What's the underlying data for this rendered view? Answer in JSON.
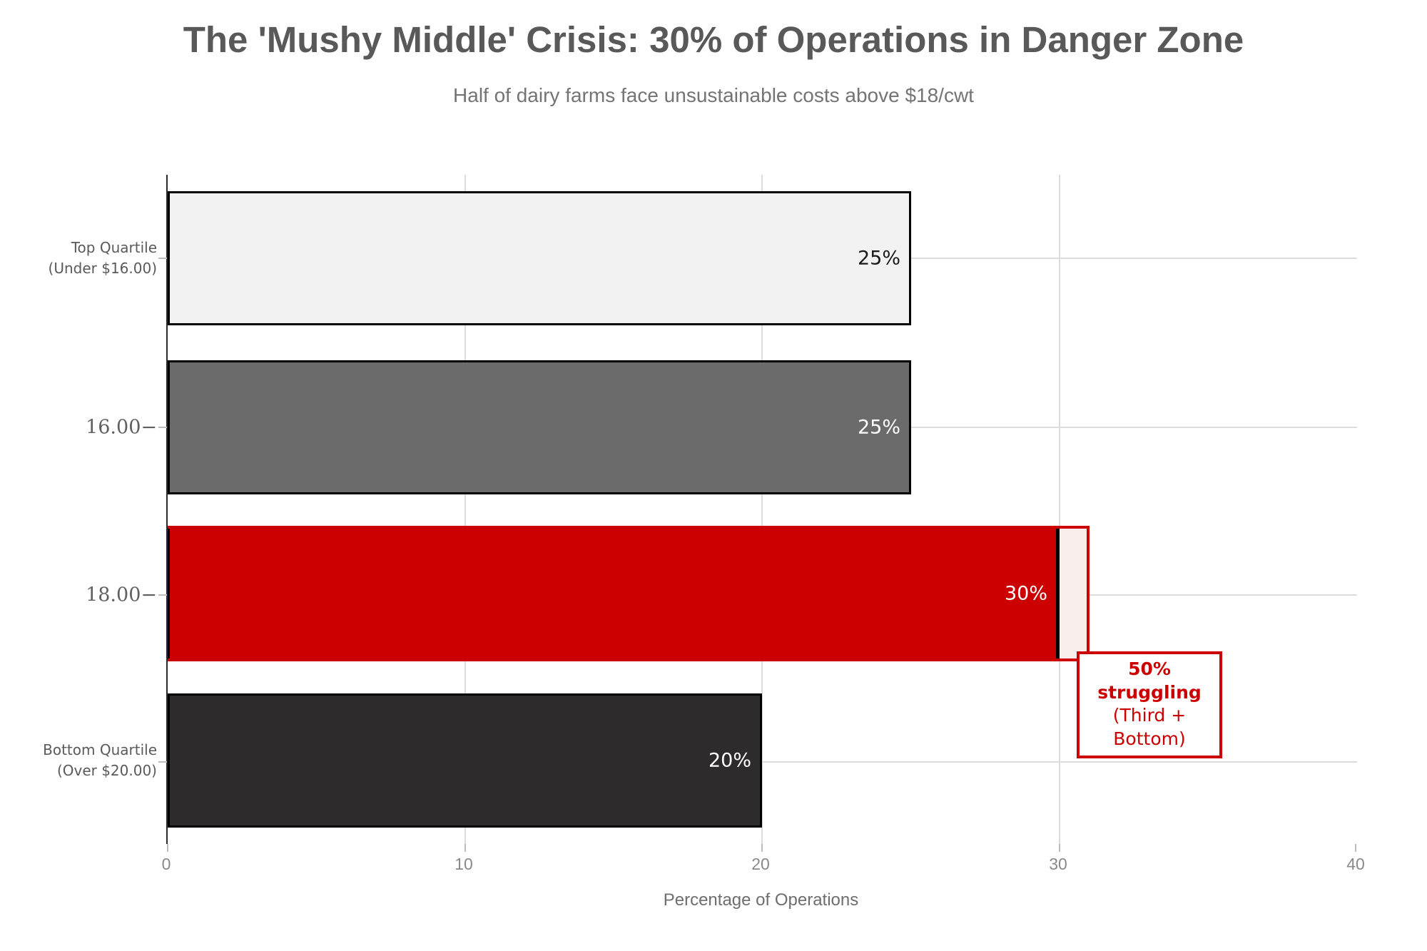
{
  "title": "The 'Mushy Middle' Crisis: 30% of Operations in Danger Zone",
  "subtitle": "Half of dairy farms face unsustainable costs above $18/cwt",
  "colors": {
    "accent_red": "#cc0000",
    "highlight_fill": "#f9eeec",
    "bar_border": "#000000",
    "grid": "#dcdcdc",
    "title_gray": "#595959"
  },
  "chart_data": {
    "type": "bar",
    "orientation": "horizontal",
    "title": "The 'Mushy Middle' Crisis: 30% of Operations in Danger Zone",
    "subtitle": "Half of dairy farms face unsustainable costs above $18/cwt",
    "xlabel": "Percentage of Operations",
    "xlim": [
      0,
      40
    ],
    "xticks": [
      0,
      10,
      20,
      30,
      40
    ],
    "grid": "on",
    "categories": [
      "Top Quartile (Under $16.00)",
      "16.00−",
      "18.00−",
      "Bottom Quartile (Over $20.00)"
    ],
    "values": [
      25,
      25,
      30,
      20
    ],
    "rows": [
      {
        "label": "Top Quartile",
        "label2": "(Under $16.00)",
        "value": 25,
        "value_label": "25%",
        "color": "#f2f2f2",
        "value_color": "#1a1a1a"
      },
      {
        "label": "16.00−",
        "label2": "",
        "value": 25,
        "value_label": "25%",
        "color": "#6b6b6b",
        "value_color": "#ffffff"
      },
      {
        "label": "18.00−",
        "label2": "",
        "value": 30,
        "value_label": "30%",
        "color": "#cc0000",
        "value_color": "#ffffff"
      },
      {
        "label": "Bottom Quartile",
        "label2": "(Over $20.00)",
        "value": 20,
        "value_label": "20%",
        "color": "#2d2b2b",
        "value_color": "#ffffff"
      }
    ],
    "highlight": {
      "row": 2,
      "span_max": 31,
      "fill": "#f9eeec",
      "edge": "#cc0000"
    },
    "annotation": {
      "line1": "50% struggling",
      "line2": "(Third + Bottom)",
      "color": "#cc0000"
    }
  }
}
